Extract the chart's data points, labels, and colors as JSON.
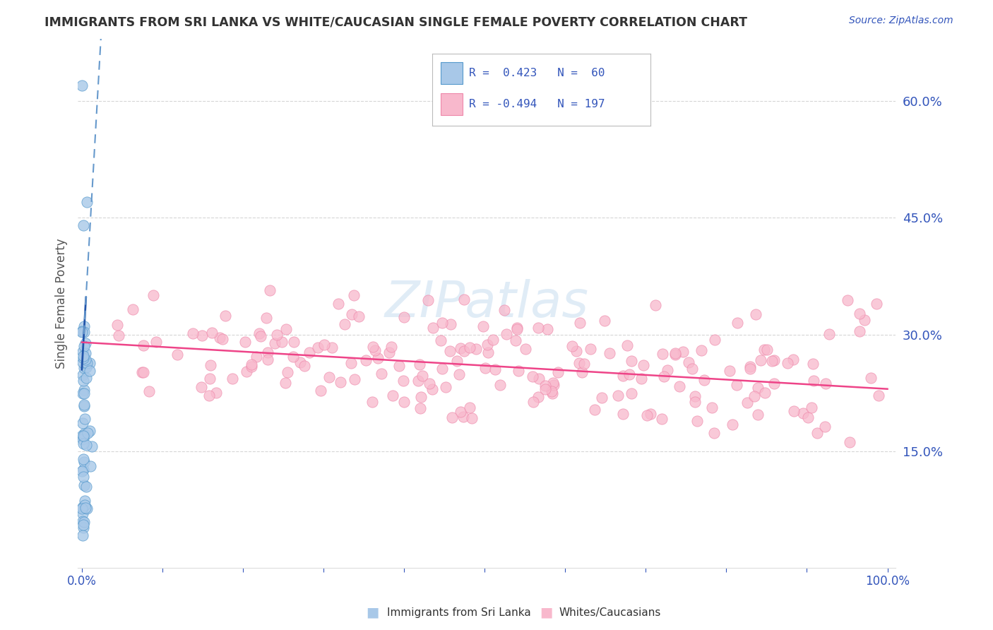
{
  "title": "IMMIGRANTS FROM SRI LANKA VS WHITE/CAUCASIAN SINGLE FEMALE POVERTY CORRELATION CHART",
  "source": "Source: ZipAtlas.com",
  "ylabel": "Single Female Poverty",
  "watermark": "ZIPatlas",
  "blue_scatter_face": "#a8c8e8",
  "blue_scatter_edge": "#5599cc",
  "pink_scatter_face": "#f8b8cc",
  "pink_scatter_edge": "#ee88aa",
  "blue_line_color": "#2255aa",
  "pink_line_color": "#ee4488",
  "axis_label_color": "#3355bb",
  "title_color": "#333333",
  "grid_color": "#cccccc",
  "watermark_color": "#ccddeeff",
  "legend_r1": "R =  0.423",
  "legend_n1": "N =  60",
  "legend_r2": "R = -0.494",
  "legend_n2": "N = 197",
  "legend_label1": "Immigrants from Sri Lanka",
  "legend_label2": "Whites/Caucasians",
  "yticks": [
    0.15,
    0.3,
    0.45,
    0.6
  ],
  "ytick_labels": [
    "15.0%",
    "30.0%",
    "45.0%",
    "60.0%"
  ],
  "ylim_max": 0.68
}
